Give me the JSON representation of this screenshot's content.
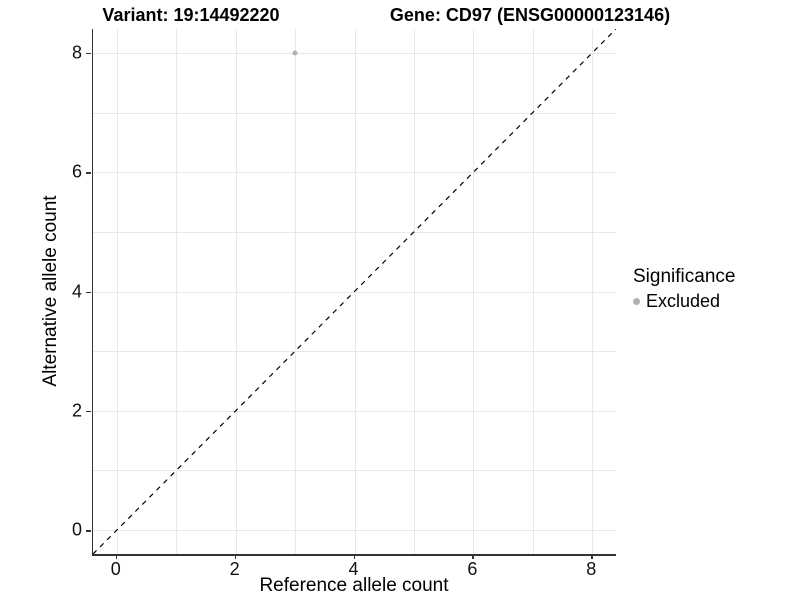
{
  "figure": {
    "title_left": "Variant: 19:14492220",
    "title_right": "Gene: CD97 (ENSG00000123146)"
  },
  "legend": {
    "title": "Significance",
    "items": [
      {
        "label": "Excluded",
        "color": "#b0b0b0"
      }
    ]
  },
  "chart_data": {
    "type": "scatter",
    "title_left": "Variant: 19:14492220",
    "title_right": "Gene: CD97 (ENSG00000123146)",
    "xlabel": "Reference allele count",
    "ylabel": "Alternative allele count",
    "xlim": [
      -0.4,
      8.4
    ],
    "ylim": [
      -0.4,
      8.4
    ],
    "x_ticks": [
      0,
      2,
      4,
      6,
      8
    ],
    "y_ticks": [
      0,
      2,
      4,
      6,
      8
    ],
    "grid": {
      "show": true,
      "interval": 1,
      "color": "#e8e8e8"
    },
    "series": [
      {
        "name": "Excluded",
        "color": "#b0b0b0",
        "point_radius": 2.5,
        "points": [
          [
            3,
            8
          ]
        ]
      }
    ],
    "reference_line": {
      "kind": "identity",
      "slope": 1,
      "intercept": 0,
      "style": "dashed",
      "color": "#000000"
    },
    "legend_position": "right",
    "axis_color": "#333333"
  }
}
